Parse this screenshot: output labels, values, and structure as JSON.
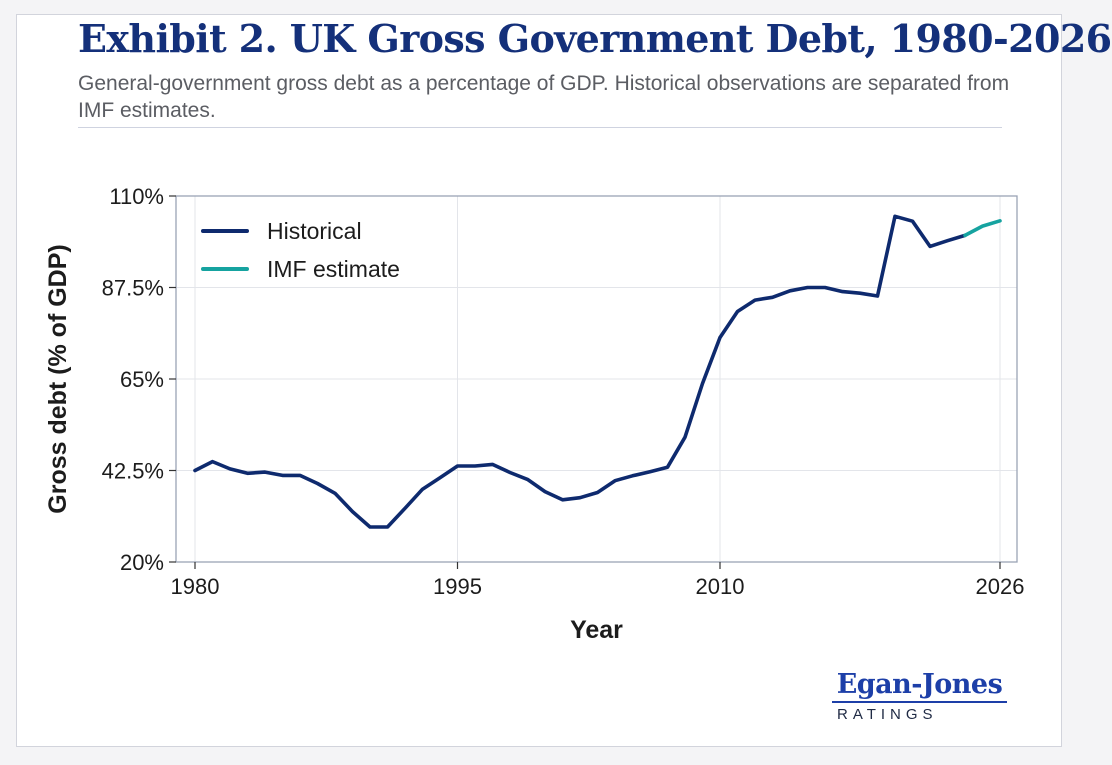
{
  "title": "Exhibit 2. UK Gross Government Debt, 1980-2026",
  "subtitle": "General-government gross debt as a percentage of GDP. Historical observations are separated from IMF estimates.",
  "logo": {
    "name": "Egan-Jones",
    "sub": "RATINGS"
  },
  "colors": {
    "title": "#14307a",
    "historical": "#0e2a6e",
    "estimate": "#16a3a0",
    "grid": "#e3e5ea",
    "axis": "#9aa3b5"
  },
  "chart_data": {
    "type": "line",
    "title": "Exhibit 2. UK Gross Government Debt, 1980-2026",
    "xlabel": "Year",
    "ylabel": "Gross debt (% of GDP)",
    "xlim": [
      1980,
      2026
    ],
    "ylim": [
      20,
      110
    ],
    "x_ticks": [
      1980,
      1995,
      2010,
      2026
    ],
    "x_tick_labels": [
      "1980",
      "1995",
      "2010",
      "2026"
    ],
    "y_ticks": [
      20,
      42.5,
      65,
      87.5,
      110
    ],
    "y_tick_labels": [
      "20%",
      "42.5%",
      "65%",
      "87.5%",
      "110%"
    ],
    "grid": true,
    "legend": "top-left",
    "series": [
      {
        "name": "Historical",
        "color": "#0e2a6e",
        "x": [
          1980,
          1981,
          1982,
          1983,
          1984,
          1985,
          1986,
          1987,
          1988,
          1989,
          1990,
          1991,
          1992,
          1993,
          1994,
          1995,
          1996,
          1997,
          1998,
          1999,
          2000,
          2001,
          2002,
          2003,
          2004,
          2005,
          2006,
          2007,
          2008,
          2009,
          2010,
          2011,
          2012,
          2013,
          2014,
          2015,
          2016,
          2017,
          2018,
          2019,
          2020,
          2021,
          2022,
          2023,
          2024
        ],
        "y": [
          42.5,
          44.7,
          42.9,
          41.8,
          42.1,
          41.3,
          41.3,
          39.3,
          36.9,
          32.4,
          28.6,
          28.6,
          33.2,
          37.9,
          40.7,
          43.6,
          43.6,
          44.0,
          42.0,
          40.3,
          37.3,
          35.3,
          35.8,
          37.1,
          40.0,
          41.2,
          42.2,
          43.3,
          50.7,
          63.9,
          75.2,
          81.6,
          84.4,
          85.1,
          86.7,
          87.5,
          87.5,
          86.5,
          86.1,
          85.4,
          105.0,
          103.8,
          97.6,
          99.0,
          100.3
        ]
      },
      {
        "name": "IMF estimate",
        "color": "#16a3a0",
        "x": [
          2024,
          2025,
          2026
        ],
        "y": [
          100.3,
          102.6,
          103.9
        ]
      }
    ]
  }
}
